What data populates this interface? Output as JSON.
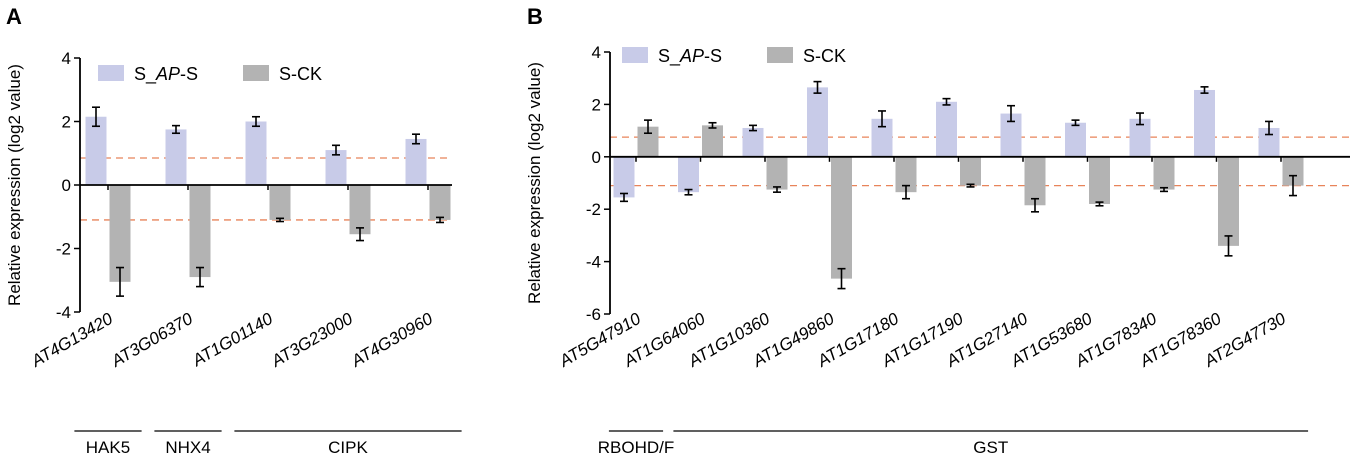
{
  "colors": {
    "treatment": "#c8cbe8",
    "control": "#b3b3b3",
    "threshold": "#e8845a",
    "axis": "#000000",
    "error": "#000000"
  },
  "chart_data": [
    {
      "panel_label": "A",
      "type": "bar",
      "ylabel": "Relative expression (log2 value)",
      "ylim": [
        -4,
        4
      ],
      "yticks": [
        4,
        2,
        0,
        -2,
        -4
      ],
      "yticklabels": [
        "4",
        "2",
        "0",
        "-2",
        "-4"
      ],
      "thresholds": [
        0.85,
        -1.1
      ],
      "categories": [
        "AT4G13420",
        "AT3G06370",
        "AT1G01140",
        "AT3G23000",
        "AT4G30960"
      ],
      "series": [
        {
          "name_prefix": "S_",
          "name_italic": "AP",
          "name_suffix": "-S",
          "values": [
            2.15,
            1.75,
            2.0,
            1.1,
            1.45
          ],
          "errors": [
            0.3,
            0.12,
            0.15,
            0.15,
            0.15
          ]
        },
        {
          "name": "S-CK",
          "values": [
            -3.05,
            -2.9,
            -1.1,
            -1.55,
            -1.1
          ],
          "errors": [
            0.45,
            0.3,
            0.05,
            0.2,
            0.08
          ]
        }
      ],
      "groups": [
        {
          "label": "HAK5",
          "from": 0,
          "to": 0
        },
        {
          "label": "NHX4",
          "from": 1,
          "to": 1
        },
        {
          "label": "CIPK",
          "from": 2,
          "to": 4
        }
      ]
    },
    {
      "panel_label": "B",
      "type": "bar",
      "ylabel": "Relative expression (log2 value)",
      "ylim": [
        -6,
        4
      ],
      "yticks": [
        4,
        2,
        0,
        -2,
        -4,
        -6
      ],
      "yticklabels": [
        "4",
        "2",
        "0",
        "-2",
        "-4",
        "-6"
      ],
      "thresholds": [
        0.75,
        -1.1
      ],
      "categories": [
        "AT5G47910",
        "AT1G64060",
        "AT1G10360",
        "AT1G49860",
        "AT1G17180",
        "AT1G17190",
        "AT1G27140",
        "AT1G53680",
        "AT1G78340",
        "AT1G78360",
        "AT2G47730"
      ],
      "series": [
        {
          "name_prefix": "S_",
          "name_italic": "AP",
          "name_suffix": "-S",
          "values": [
            -1.55,
            -1.35,
            1.1,
            2.65,
            1.45,
            2.1,
            1.65,
            1.3,
            1.45,
            2.55,
            1.1
          ],
          "errors": [
            0.15,
            0.1,
            0.1,
            0.22,
            0.3,
            0.12,
            0.3,
            0.1,
            0.22,
            0.12,
            0.25
          ]
        },
        {
          "name": "S-CK",
          "values": [
            1.15,
            1.2,
            -1.25,
            -4.65,
            -1.35,
            -1.1,
            -1.85,
            -1.8,
            -1.25,
            -3.4,
            -1.1
          ],
          "errors": [
            0.25,
            0.1,
            0.1,
            0.38,
            0.25,
            0.05,
            0.25,
            0.07,
            0.07,
            0.38,
            0.38
          ]
        }
      ],
      "groups": [
        {
          "label": "RBOHD/F",
          "from": 0,
          "to": 0
        },
        {
          "label": "GST",
          "from": 1,
          "to": 10
        }
      ]
    }
  ]
}
